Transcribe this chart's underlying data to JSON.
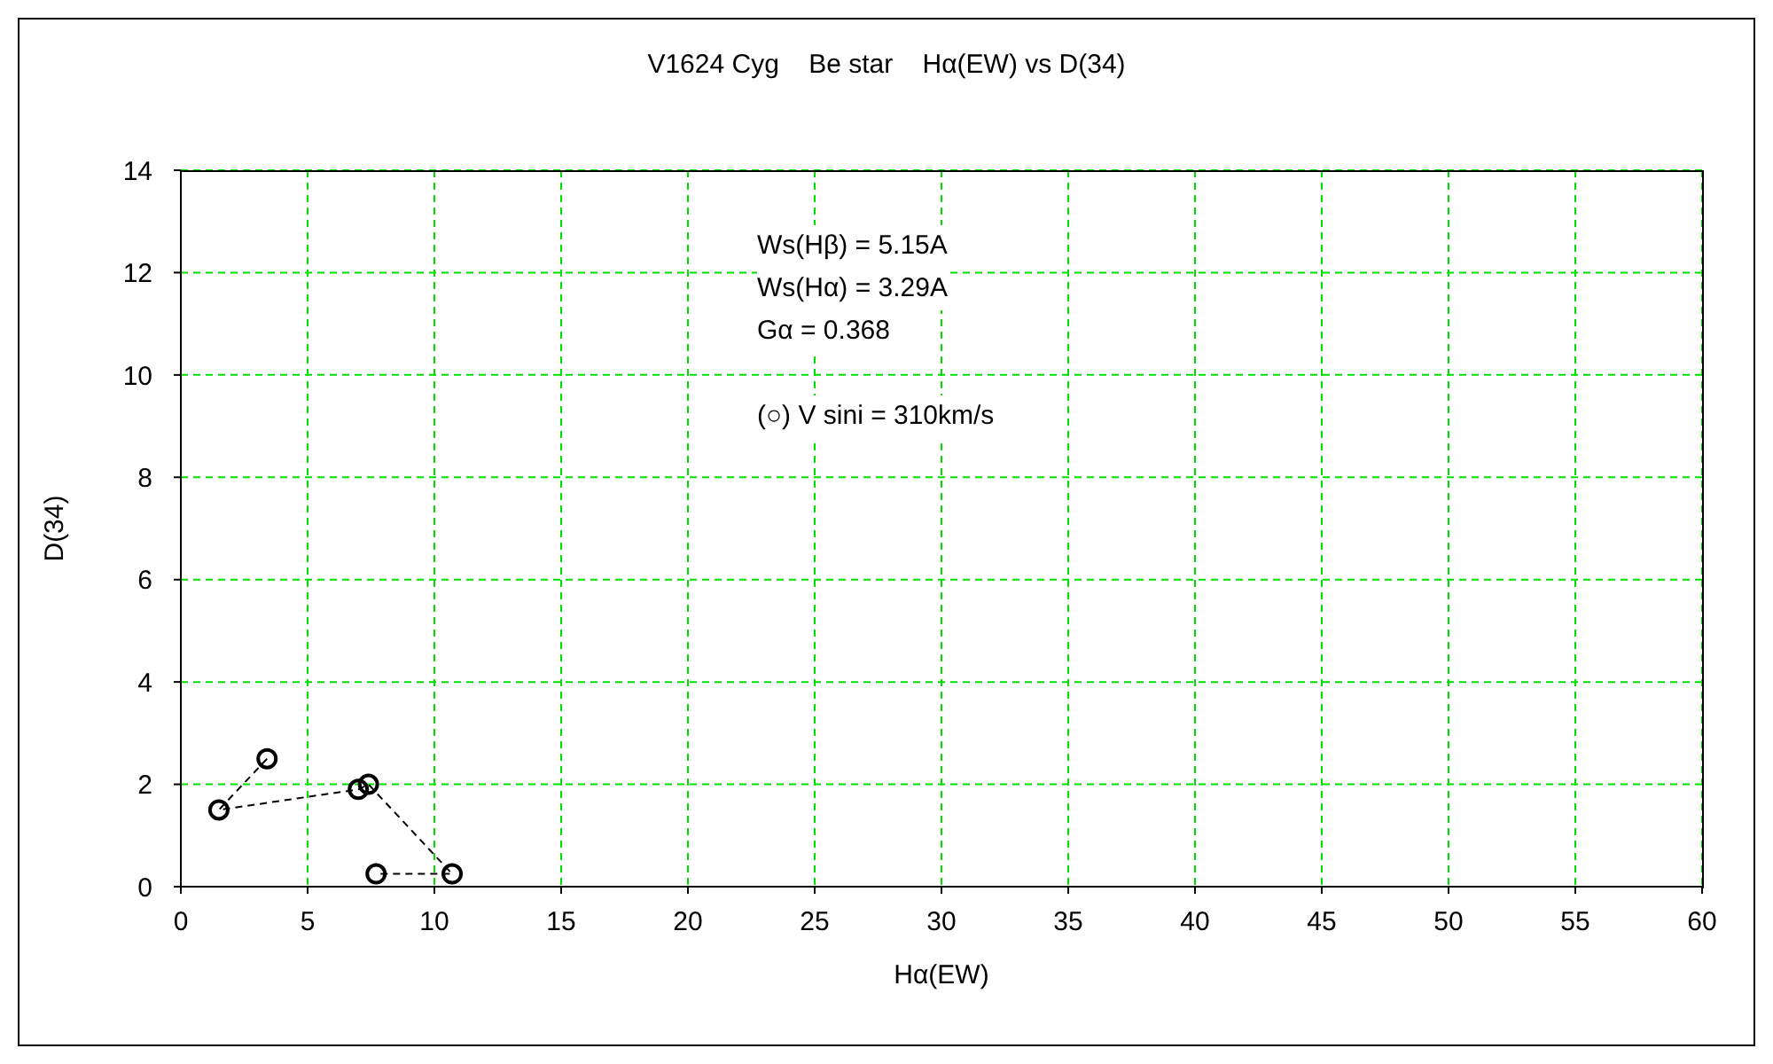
{
  "chart_data": {
    "type": "line",
    "title": "V1624 Cyg    Be star    Hα(EW) vs D(34)",
    "xlabel": "Hα(EW)",
    "ylabel": "D(34)",
    "annotations": [
      "Ws(Hβ) = 5.15A",
      "Ws(Hα) = 3.29A",
      "Gα = 0.368",
      "(○) V sini = 310km/s"
    ],
    "x": [
      3.4,
      1.5,
      7.0,
      7.4,
      10.7,
      7.7
    ],
    "values": [
      2.5,
      1.5,
      1.9,
      2.0,
      0.25,
      0.25
    ],
    "color": "#000000",
    "xlim": [
      0,
      60
    ],
    "ylim": [
      0,
      14
    ],
    "xticks": [
      0,
      5,
      10,
      15,
      20,
      25,
      30,
      35,
      40,
      45,
      50,
      55,
      60
    ],
    "yticks": [
      0,
      2,
      4,
      6,
      8,
      10,
      12,
      14
    ],
    "grid": true,
    "marker": "circle",
    "line_style": "dashed"
  }
}
